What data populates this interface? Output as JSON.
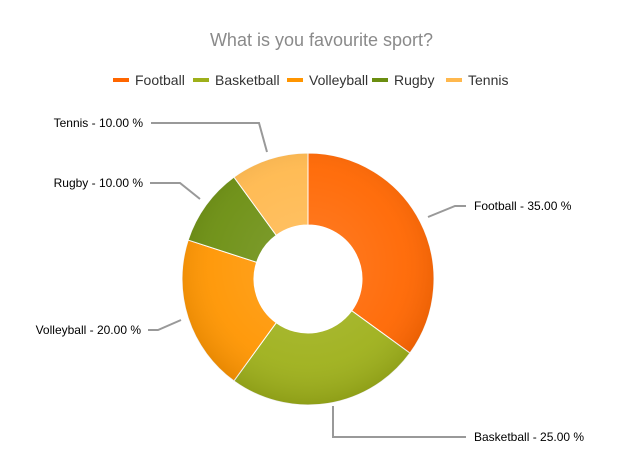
{
  "chart_data": {
    "type": "pie",
    "donut": true,
    "title": "What is you favourite sport?",
    "legend_position": "top",
    "categories": [
      "Football",
      "Basketball",
      "Volleyball",
      "Rugby",
      "Tennis"
    ],
    "values": [
      35,
      25,
      20,
      10,
      10
    ],
    "labels": [
      "Football - 35.00 %",
      "Basketball - 25.00 %",
      "Volleyball - 20.00 %",
      "Rugby - 10.00 %",
      "Tennis - 10.00 %"
    ],
    "colors": [
      "#ff6600",
      "#9eb01a",
      "#ff9500",
      "#6b8e10",
      "#ffb84d"
    ]
  }
}
